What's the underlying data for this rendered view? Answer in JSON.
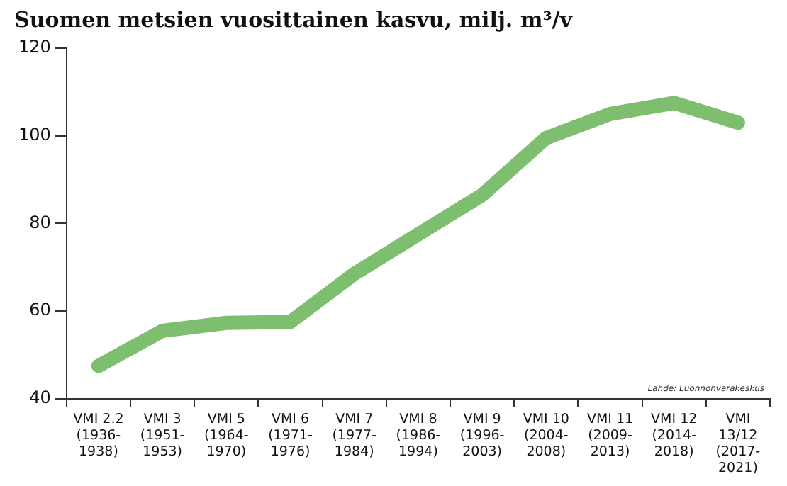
{
  "chart_data": {
    "type": "line",
    "title": "Suomen metsien vuosittainen kasvu, milj. m³/v",
    "categories": [
      "VMI 2.2\n(1936-\n1938)",
      "VMI 3\n(1951-\n1953)",
      "VMI 5\n(1964-\n1970)",
      "VMI 6\n(1971-\n1976)",
      "VMI 7\n(1977-\n1984)",
      "VMI 8\n(1986-\n1994)",
      "VMI 9\n(1996-\n2003)",
      "VMI 10\n(2004-\n2008)",
      "VMI 11\n(2009-\n2013)",
      "VMI 12\n(2014-\n2018)",
      "VMI\n13/12\n(2017-\n2021)"
    ],
    "series": [
      {
        "color": "#7dbf6e",
        "values": [
          47.5,
          55.5,
          57.3,
          57.5,
          68.5,
          77.5,
          86.5,
          99.5,
          105,
          107.5,
          103
        ]
      }
    ],
    "ylim": [
      40,
      120
    ],
    "yticks": [
      40,
      60,
      80,
      100,
      120
    ],
    "grid": false,
    "legend": false,
    "marker": "none",
    "line_style": "solid",
    "annotations": [
      "Lähde: Luonnonvarakeskus"
    ]
  }
}
